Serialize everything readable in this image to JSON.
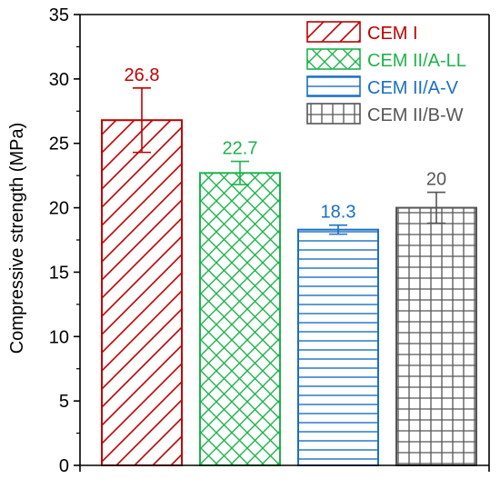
{
  "chart_data": {
    "type": "bar",
    "title": "",
    "xlabel": "",
    "ylabel": "Compressive strength (MPa)",
    "ylim": [
      0,
      35
    ],
    "yticks": [
      "0",
      "5",
      "10",
      "15",
      "20",
      "25",
      "30",
      "35"
    ],
    "grid": false,
    "legend_position": "top-right",
    "series": [
      {
        "name": "CEM I",
        "value": 26.8,
        "label": "26.8",
        "error": 2.5,
        "color": "#c00000",
        "pattern": "diagonal-hatch"
      },
      {
        "name": "CEM II/A-LL",
        "value": 22.7,
        "label": "22.7",
        "error": 0.9,
        "color": "#1db34b",
        "pattern": "cross-hatch"
      },
      {
        "name": "CEM II/A-V",
        "value": 18.3,
        "label": "18.3",
        "error": 0.35,
        "color": "#1a6fc4",
        "pattern": "horizontal-lines"
      },
      {
        "name": "CEM II/B-W",
        "value": 20,
        "label": "20",
        "error": 1.2,
        "color": "#555555",
        "pattern": "grid"
      }
    ]
  }
}
